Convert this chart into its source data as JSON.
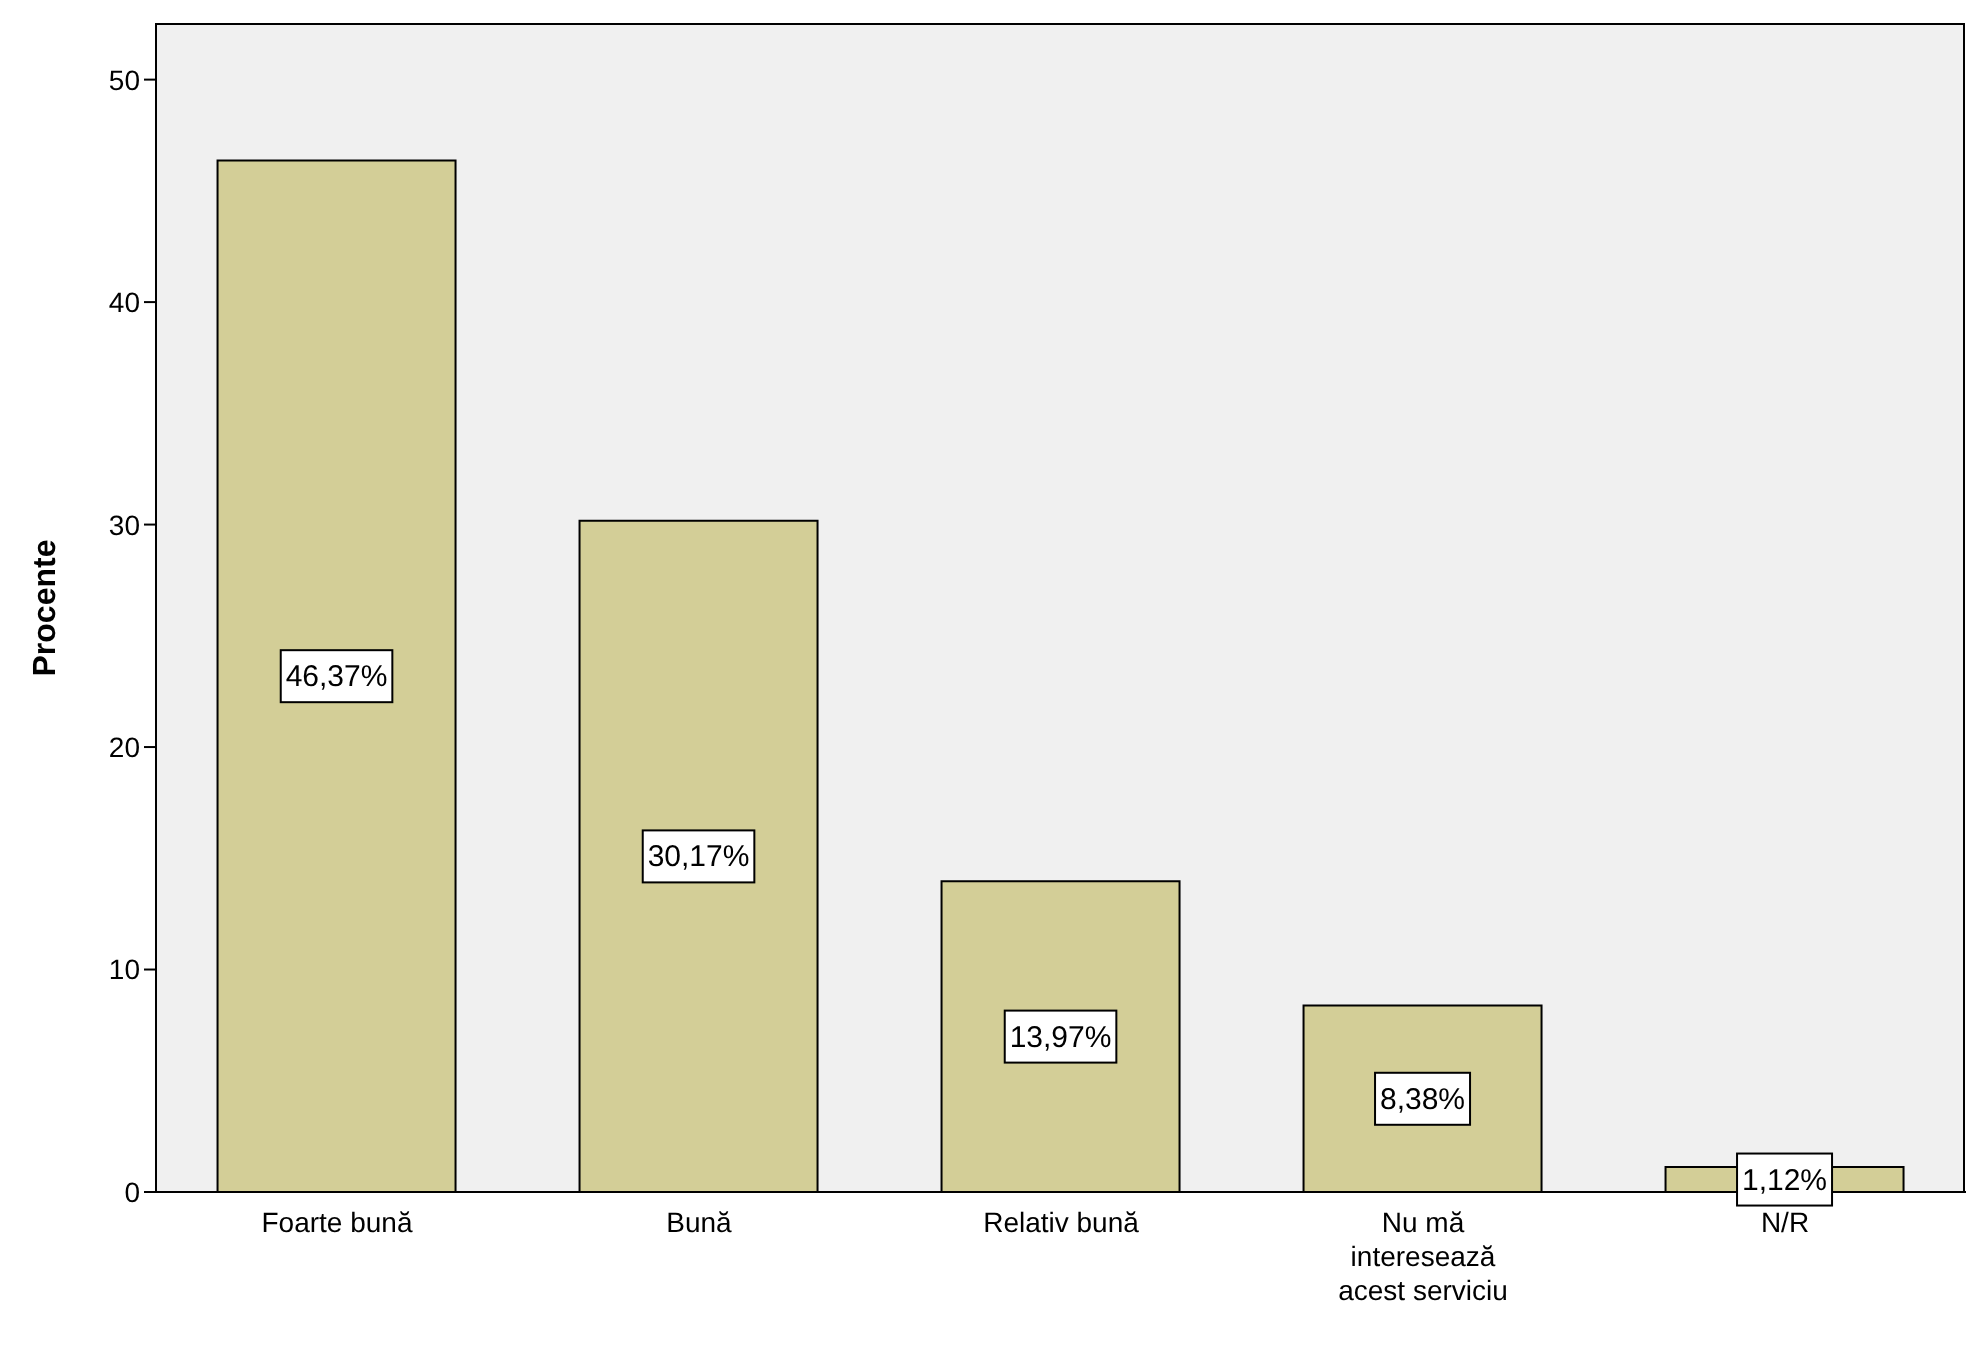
{
  "chart_data": {
    "type": "bar",
    "ylabel": "Procente",
    "categories": [
      "Foarte bună",
      "Bună",
      "Relativ bună",
      "Nu mă interesează acest serviciu",
      "N/R"
    ],
    "values": [
      46.37,
      30.17,
      13.97,
      8.38,
      1.12
    ],
    "value_labels": [
      "46,37%",
      "30,17%",
      "13,97%",
      "8,38%",
      "1,12%"
    ],
    "color": "#d3ce97",
    "ylim": [
      0,
      52.5
    ],
    "yticks": [
      0,
      10,
      20,
      30,
      40,
      50
    ],
    "grid": false,
    "legend": false
  }
}
